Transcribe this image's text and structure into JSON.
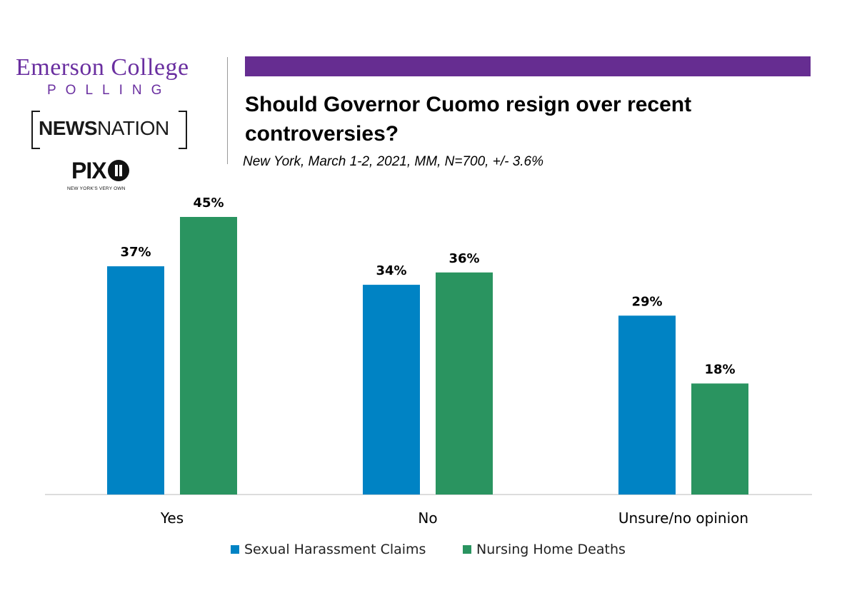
{
  "logos": {
    "emerson_name": "Emerson College",
    "emerson_sub": "POLLING",
    "newsnation_bold": "NEWS",
    "newsnation_light": "NATION",
    "pix_text": "PIX",
    "pix_tagline": "NEW YORK'S VERY OWN"
  },
  "header": {
    "title": "Should Governor Cuomo resign over recent controversies?",
    "subtitle": "New York, March 1-2, 2021, MM, N=700, +/- 3.6%"
  },
  "colors": {
    "brand_purple": "#662d91",
    "series_blue": "#0083c4",
    "series_green": "#2a9460",
    "baseline": "#d0d0d0"
  },
  "chart_data": {
    "type": "bar",
    "title": "Should Governor Cuomo resign over recent controversies?",
    "subtitle": "New York, March 1-2, 2021, MM, N=700, +/- 3.6%",
    "categories": [
      "Yes",
      "No",
      "Unsure/no opinion"
    ],
    "series": [
      {
        "name": "Sexual Harassment Claims",
        "values": [
          37,
          34,
          29
        ],
        "labels": [
          "37%",
          "34%",
          "29%"
        ],
        "color": "#0083c4"
      },
      {
        "name": "Nursing Home Deaths",
        "values": [
          45,
          36,
          18
        ],
        "labels": [
          "45%",
          "36%",
          "18%"
        ],
        "color": "#2a9460"
      }
    ],
    "ylim": [
      0,
      45
    ],
    "grid": false,
    "legend": "bottom"
  }
}
